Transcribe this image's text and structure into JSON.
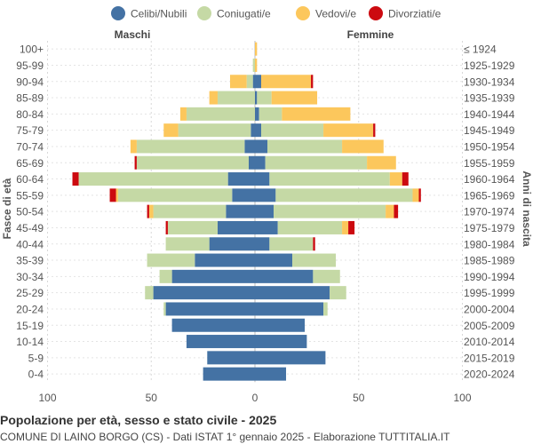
{
  "chart_data": {
    "type": "bar",
    "orientation": "horizontal-pyramid",
    "legend": [
      {
        "key": "celibi",
        "label": "Celibi/Nubili",
        "color": "#4472a4"
      },
      {
        "key": "coniugati",
        "label": "Coniugati/e",
        "color": "#c5d9a5"
      },
      {
        "key": "vedovi",
        "label": "Vedovi/e",
        "color": "#fcc75c"
      },
      {
        "key": "divorziati",
        "label": "Divorziati/e",
        "color": "#cc0a10"
      }
    ],
    "legend_position": "top",
    "left_header": "Maschi",
    "right_header": "Femmine",
    "ylabel_left": "Fasce di età",
    "ylabel_right": "Anni di nascita",
    "x_ticks": [
      "100",
      "50",
      "0",
      "50",
      "100"
    ],
    "xlim": [
      -100,
      100
    ],
    "grid": true,
    "age_groups": [
      "100+",
      "95-99",
      "90-94",
      "85-89",
      "80-84",
      "75-79",
      "70-74",
      "65-69",
      "60-64",
      "55-59",
      "50-54",
      "45-49",
      "40-44",
      "35-39",
      "30-34",
      "25-29",
      "20-24",
      "15-19",
      "10-14",
      "5-9",
      "0-4"
    ],
    "birth_years": [
      "≤ 1924",
      "1925-1929",
      "1930-1934",
      "1935-1939",
      "1940-1944",
      "1945-1949",
      "1950-1954",
      "1955-1959",
      "1960-1964",
      "1965-1969",
      "1970-1974",
      "1975-1979",
      "1980-1984",
      "1985-1989",
      "1990-1994",
      "1995-1999",
      "2000-2004",
      "2005-2009",
      "2010-2014",
      "2015-2019",
      "2020-2024"
    ],
    "males": {
      "celibi": [
        0,
        0,
        1,
        0,
        0,
        2,
        5,
        3,
        13,
        11,
        14,
        18,
        22,
        29,
        40,
        49,
        43,
        40,
        33,
        23,
        25
      ],
      "coniugati": [
        0,
        1,
        3,
        18,
        33,
        35,
        52,
        54,
        72,
        55,
        35,
        24,
        21,
        23,
        6,
        4,
        1,
        0,
        0,
        0,
        0
      ],
      "vedovi": [
        0,
        0,
        8,
        4,
        3,
        7,
        3,
        0,
        0,
        1,
        2,
        0,
        0,
        0,
        0,
        0,
        0,
        0,
        0,
        0,
        0
      ],
      "divorziati": [
        0,
        0,
        0,
        0,
        0,
        0,
        0,
        1,
        3,
        3,
        1,
        1,
        0,
        0,
        0,
        0,
        0,
        0,
        0,
        0,
        0
      ]
    },
    "females": {
      "celibi": [
        0,
        0,
        3,
        1,
        2,
        3,
        6,
        5,
        7,
        10,
        9,
        11,
        7,
        18,
        28,
        36,
        33,
        24,
        25,
        34,
        15
      ],
      "coniugati": [
        0,
        0,
        0,
        7,
        11,
        30,
        36,
        49,
        58,
        66,
        54,
        31,
        21,
        21,
        13,
        8,
        2,
        0,
        0,
        0,
        0
      ],
      "vedovi": [
        1,
        1,
        24,
        22,
        33,
        24,
        20,
        14,
        6,
        3,
        4,
        3,
        0,
        0,
        0,
        0,
        0,
        0,
        0,
        0,
        0
      ],
      "divorziati": [
        0,
        0,
        1,
        0,
        0,
        1,
        0,
        0,
        3,
        1,
        2,
        3,
        1,
        0,
        0,
        0,
        0,
        0,
        0,
        0,
        0
      ]
    },
    "title": "Popolazione per età, sesso e stato civile - 2025",
    "subtitle": "COMUNE DI LAINO BORGO (CS) - Dati ISTAT 1° gennaio 2025 - Elaborazione TUTTITALIA.IT"
  }
}
